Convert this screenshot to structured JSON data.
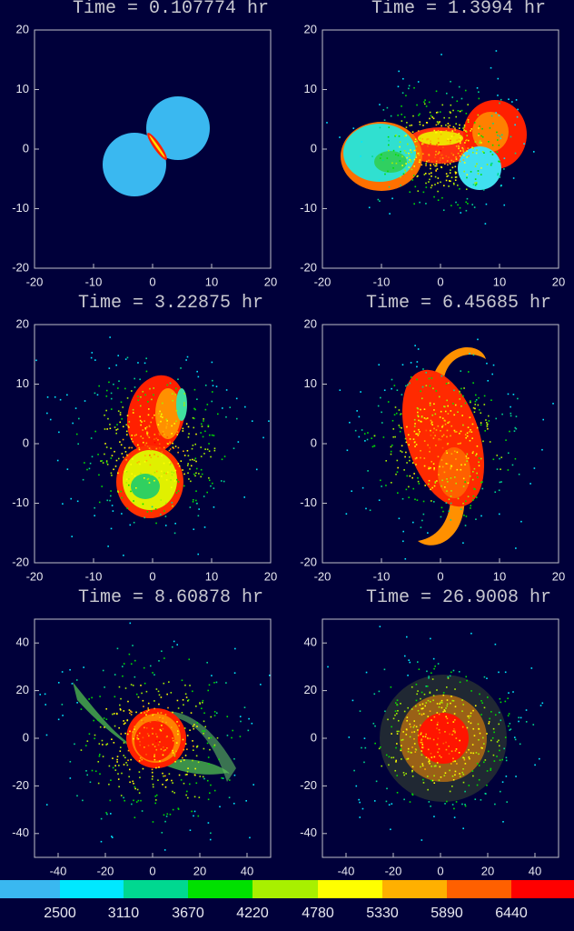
{
  "panels": [
    {
      "title": "Time = 0.107774 hr",
      "xticks": [
        -20,
        -10,
        0,
        10,
        20
      ],
      "yticks": [
        -20,
        -10,
        0,
        10,
        20
      ]
    },
    {
      "title": "Time = 1.3994 hr",
      "xticks": [
        -20,
        -10,
        0,
        10,
        20
      ],
      "yticks": [
        -20,
        -10,
        0,
        10,
        20
      ]
    },
    {
      "title": "Time = 3.22875 hr",
      "xticks": [
        -20,
        -10,
        0,
        10,
        20
      ],
      "yticks": [
        -20,
        -10,
        0,
        10,
        20
      ]
    },
    {
      "title": "Time = 6.45685 hr",
      "xticks": [
        -20,
        -10,
        0,
        10,
        20
      ],
      "yticks": [
        -20,
        -10,
        0,
        10,
        20
      ]
    },
    {
      "title": "Time = 8.60878 hr",
      "xticks": [
        -40,
        -20,
        0,
        20,
        40
      ],
      "yticks": [
        -40,
        -20,
        0,
        20,
        40
      ]
    },
    {
      "title": "Time = 26.9008 hr",
      "xticks": [
        -40,
        -20,
        0,
        20,
        40
      ],
      "yticks": [
        -40,
        -20,
        0,
        20,
        40
      ]
    }
  ],
  "colorbar": {
    "labels": [
      "2500",
      "3110",
      "3670",
      "4220",
      "4780",
      "5330",
      "5890",
      "6440"
    ]
  }
}
